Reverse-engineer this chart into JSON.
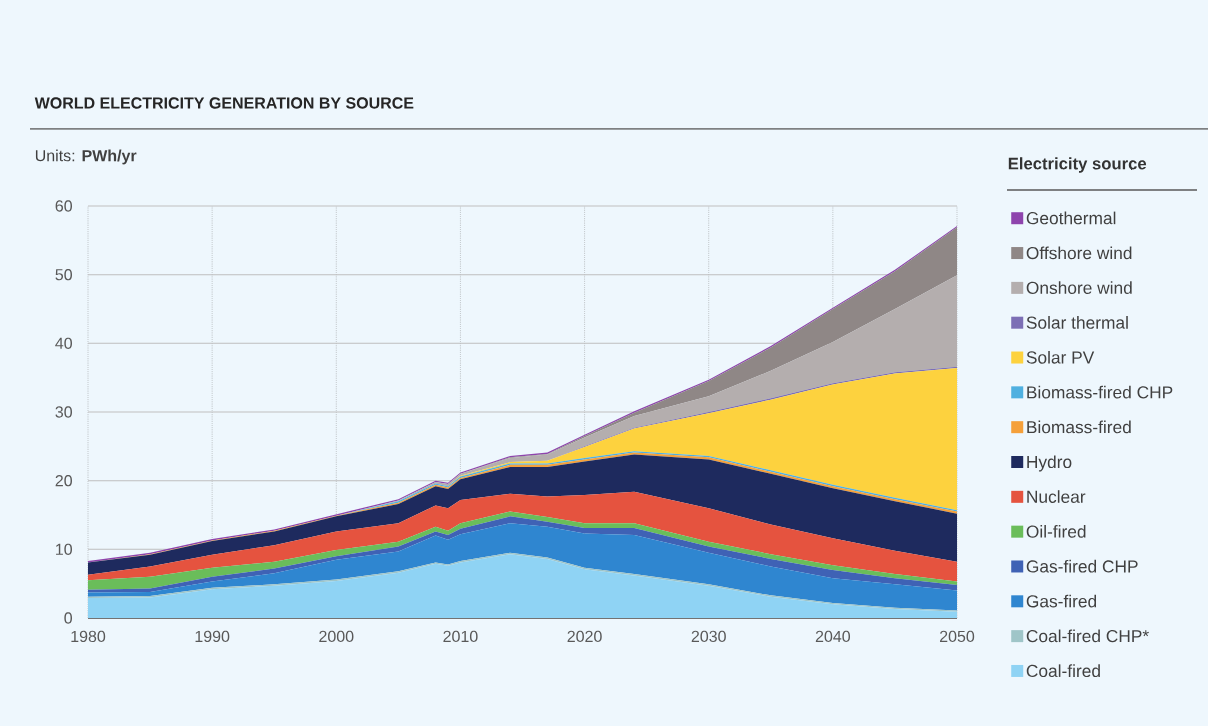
{
  "chart_data": {
    "type": "area",
    "stacked": true,
    "title": "WORLD ELECTRICITY GENERATION BY SOURCE",
    "subtitle": "Units: **PWh/yr**",
    "legend_title": "Electricity source",
    "legend": "right",
    "grid": true,
    "x": [
      1980,
      1985,
      1990,
      1995,
      2000,
      2005,
      2008,
      2009,
      2010,
      2014,
      2017,
      2020,
      2024,
      2030,
      2035,
      2040,
      2045,
      2050
    ],
    "xlim": [
      1980,
      2050
    ],
    "xticks": [
      1980,
      1990,
      2000,
      2010,
      2020,
      2030,
      2040,
      2050
    ],
    "ylim": [
      0,
      60
    ],
    "yticks": [
      0,
      10,
      20,
      30,
      40,
      50,
      60
    ],
    "series": [
      {
        "name": "Coal-fired",
        "color": "#8fd3f4",
        "values": [
          2.9,
          3.0,
          4.2,
          4.7,
          5.4,
          6.6,
          7.9,
          7.6,
          8.1,
          9.3,
          8.6,
          7.1,
          6.2,
          4.7,
          3.1,
          2.0,
          1.3,
          0.9
        ]
      },
      {
        "name": "Coal-fired CHP*",
        "color": "#9fc5c8",
        "values": [
          0.2,
          0.2,
          0.2,
          0.2,
          0.2,
          0.2,
          0.2,
          0.2,
          0.2,
          0.2,
          0.2,
          0.2,
          0.2,
          0.2,
          0.2,
          0.2,
          0.2,
          0.2
        ]
      },
      {
        "name": "Gas-fired",
        "color": "#2f86d0",
        "values": [
          0.6,
          0.6,
          0.9,
          1.6,
          2.9,
          2.9,
          3.9,
          3.6,
          3.9,
          4.3,
          4.5,
          5.0,
          5.7,
          4.6,
          4.2,
          3.6,
          3.4,
          2.9
        ]
      },
      {
        "name": "Gas-fired CHP",
        "color": "#3f62b5",
        "values": [
          0.4,
          0.5,
          0.7,
          0.7,
          0.5,
          0.7,
          0.6,
          0.7,
          0.8,
          1.0,
          0.7,
          0.8,
          1.0,
          0.9,
          1.1,
          1.2,
          0.9,
          0.8
        ]
      },
      {
        "name": "Oil-fired",
        "color": "#6abd5a",
        "values": [
          1.4,
          1.7,
          1.3,
          1.0,
          0.9,
          0.7,
          0.7,
          0.6,
          0.8,
          0.7,
          0.7,
          0.7,
          0.7,
          0.7,
          0.7,
          0.7,
          0.6,
          0.5
        ]
      },
      {
        "name": "Nuclear",
        "color": "#e5533f",
        "values": [
          0.8,
          1.5,
          1.9,
          2.4,
          2.7,
          2.7,
          3.1,
          3.3,
          3.4,
          2.6,
          3.0,
          4.1,
          4.6,
          4.9,
          4.3,
          3.9,
          3.4,
          2.9
        ]
      },
      {
        "name": "Hydro",
        "color": "#1e2a5e",
        "values": [
          1.8,
          1.7,
          2.0,
          2.0,
          2.2,
          2.8,
          2.8,
          2.8,
          3.0,
          3.9,
          4.3,
          4.9,
          5.4,
          7.1,
          7.4,
          7.3,
          7.2,
          7.0
        ]
      },
      {
        "name": "Biomass-fired",
        "color": "#f5a03a",
        "values": [
          0.0,
          0.1,
          0.1,
          0.1,
          0.1,
          0.2,
          0.2,
          0.2,
          0.2,
          0.3,
          0.3,
          0.3,
          0.3,
          0.3,
          0.3,
          0.3,
          0.3,
          0.3
        ]
      },
      {
        "name": "Biomass-fired CHP",
        "color": "#4fb0e0",
        "values": [
          0.0,
          0.0,
          0.0,
          0.0,
          0.0,
          0.2,
          0.2,
          0.2,
          0.2,
          0.2,
          0.2,
          0.2,
          0.2,
          0.2,
          0.2,
          0.2,
          0.2,
          0.2
        ]
      },
      {
        "name": "Solar PV",
        "color": "#fdd23e",
        "values": [
          0.0,
          0.0,
          0.0,
          0.0,
          0.0,
          0.0,
          0.0,
          0.0,
          0.1,
          0.2,
          0.4,
          1.6,
          3.3,
          6.2,
          10.3,
          14.6,
          18.1,
          20.7
        ]
      },
      {
        "name": "Solar thermal",
        "color": "#7c6fb5",
        "values": [
          0.0,
          0.0,
          0.0,
          0.0,
          0.0,
          0.0,
          0.0,
          0.0,
          0.0,
          0.0,
          0.0,
          0.1,
          0.1,
          0.2,
          0.2,
          0.2,
          0.2,
          0.2
        ]
      },
      {
        "name": "Onshore wind",
        "color": "#b4aeae",
        "values": [
          0.0,
          0.0,
          0.0,
          0.0,
          0.0,
          0.1,
          0.2,
          0.3,
          0.3,
          0.6,
          0.9,
          1.3,
          1.7,
          2.3,
          4.0,
          6.0,
          9.2,
          13.3
        ]
      },
      {
        "name": "Offshore wind",
        "color": "#8f8786",
        "values": [
          0.0,
          0.0,
          0.0,
          0.0,
          0.0,
          0.0,
          0.0,
          0.0,
          0.0,
          0.1,
          0.1,
          0.2,
          0.5,
          2.2,
          3.4,
          4.8,
          5.5,
          7.0
        ]
      },
      {
        "name": "Geothermal",
        "color": "#8e44ad",
        "values": [
          0.2,
          0.2,
          0.2,
          0.2,
          0.2,
          0.2,
          0.2,
          0.2,
          0.2,
          0.2,
          0.2,
          0.2,
          0.2,
          0.2,
          0.2,
          0.2,
          0.2,
          0.2
        ]
      }
    ]
  }
}
